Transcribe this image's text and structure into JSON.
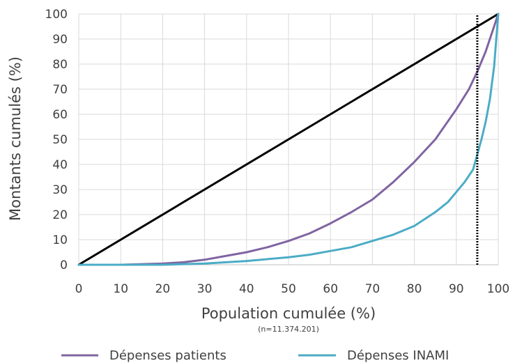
{
  "chart_data": {
    "type": "line",
    "title": "",
    "xlabel": "Population cumulée (%)",
    "xlabel_note": "(n=11.374.201)",
    "ylabel": "Montants cumulés (%)",
    "xlim": [
      0,
      100
    ],
    "ylim": [
      0,
      100
    ],
    "x_ticks": [
      "0",
      "10",
      "20",
      "30",
      "40",
      "50",
      "60",
      "70",
      "80",
      "90",
      "100"
    ],
    "y_ticks": [
      "0",
      "10",
      "20",
      "30",
      "40",
      "50",
      "60",
      "70",
      "80",
      "90",
      "100"
    ],
    "grid": true,
    "legend_position": "bottom",
    "series": [
      {
        "name": "",
        "color": "#000000",
        "x": [
          0,
          100
        ],
        "y": [
          0,
          100
        ]
      },
      {
        "name": "Dépenses patients",
        "color": "#8064a2",
        "x": [
          0,
          10,
          20,
          25,
          30,
          35,
          40,
          45,
          50,
          55,
          60,
          65,
          70,
          75,
          80,
          85,
          90,
          93,
          95,
          97,
          99,
          100
        ],
        "y": [
          0,
          0,
          0.5,
          1,
          2,
          3.5,
          5,
          7,
          9.5,
          12.5,
          16.5,
          21,
          26,
          33,
          41,
          50,
          62,
          70,
          77,
          85,
          95,
          100
        ]
      },
      {
        "name": "Dépenses INAMI",
        "color": "#4bacc6",
        "x": [
          0,
          20,
          30,
          40,
          50,
          55,
          60,
          65,
          70,
          75,
          80,
          85,
          88,
          90,
          92,
          94,
          95,
          96,
          97,
          98,
          99,
          100
        ],
        "y": [
          0,
          0,
          0.5,
          1.5,
          3,
          4,
          5.5,
          7,
          9.5,
          12,
          15.5,
          21,
          25,
          29,
          33,
          38,
          44,
          50,
          57,
          66,
          79,
          100
        ]
      },
      {
        "name": "",
        "color": "#000000",
        "dashed": true,
        "x": [
          95,
          95
        ],
        "y": [
          0,
          100
        ]
      }
    ]
  },
  "legend": {
    "patients": "Dépenses patients",
    "inami": "Dépenses INAMI"
  }
}
